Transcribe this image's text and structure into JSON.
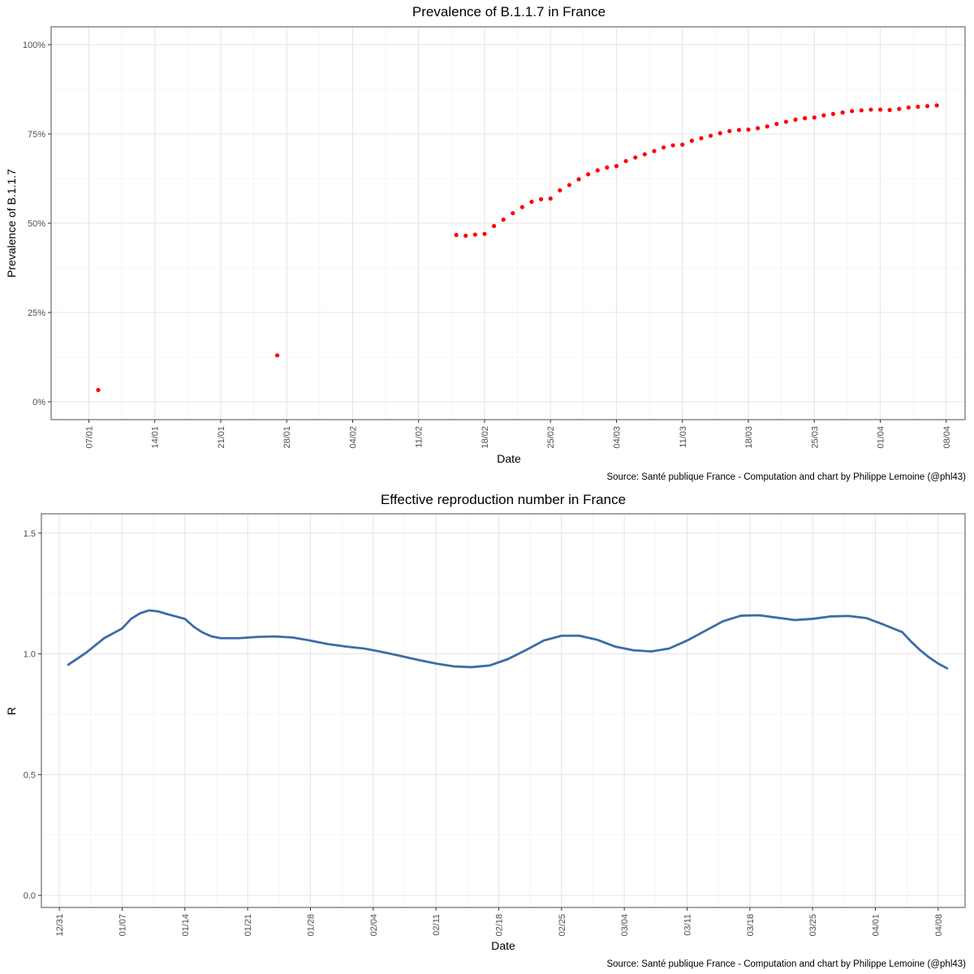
{
  "chart_data": [
    {
      "type": "scatter",
      "title": "Prevalence of B.1.1.7 in France",
      "xlabel": "Date",
      "ylabel": "Prevalence of B.1.1.7",
      "caption": "Source: Santé publique France - Computation and chart by Philippe Lemoine (@phl43)",
      "xlim": [
        "2021-01-03",
        "2021-04-10"
      ],
      "ylim": [
        -0.05,
        1.05
      ],
      "x_ticks": [
        "2021-01-07",
        "2021-01-14",
        "2021-01-21",
        "2021-01-28",
        "2021-02-04",
        "2021-02-11",
        "2021-02-18",
        "2021-02-25",
        "2021-03-04",
        "2021-03-11",
        "2021-03-18",
        "2021-03-25",
        "2021-04-01",
        "2021-04-08"
      ],
      "x_tick_labels": [
        "07/01",
        "14/01",
        "21/01",
        "28/01",
        "04/02",
        "11/02",
        "18/02",
        "25/02",
        "04/03",
        "11/03",
        "18/03",
        "25/03",
        "01/04",
        "08/04"
      ],
      "y_ticks": [
        0,
        0.25,
        0.5,
        0.75,
        1.0
      ],
      "y_tick_labels": [
        "0%",
        "25%",
        "50%",
        "75%",
        "100%"
      ],
      "grid": true,
      "point_color": "#ff0000",
      "points": [
        {
          "x": "2021-01-08",
          "y": 0.033
        },
        {
          "x": "2021-01-27",
          "y": 0.13
        },
        {
          "x": "2021-02-15",
          "y": 0.467
        },
        {
          "x": "2021-02-16",
          "y": 0.465
        },
        {
          "x": "2021-02-17",
          "y": 0.468
        },
        {
          "x": "2021-02-18",
          "y": 0.47
        },
        {
          "x": "2021-02-19",
          "y": 0.492
        },
        {
          "x": "2021-02-20",
          "y": 0.51
        },
        {
          "x": "2021-02-21",
          "y": 0.528
        },
        {
          "x": "2021-02-22",
          "y": 0.545
        },
        {
          "x": "2021-02-23",
          "y": 0.56
        },
        {
          "x": "2021-02-24",
          "y": 0.567
        },
        {
          "x": "2021-02-25",
          "y": 0.569
        },
        {
          "x": "2021-02-26",
          "y": 0.592
        },
        {
          "x": "2021-02-27",
          "y": 0.607
        },
        {
          "x": "2021-02-28",
          "y": 0.623
        },
        {
          "x": "2021-03-01",
          "y": 0.637
        },
        {
          "x": "2021-03-02",
          "y": 0.648
        },
        {
          "x": "2021-03-03",
          "y": 0.656
        },
        {
          "x": "2021-03-04",
          "y": 0.66
        },
        {
          "x": "2021-03-05",
          "y": 0.674
        },
        {
          "x": "2021-03-06",
          "y": 0.684
        },
        {
          "x": "2021-03-07",
          "y": 0.693
        },
        {
          "x": "2021-03-08",
          "y": 0.702
        },
        {
          "x": "2021-03-09",
          "y": 0.712
        },
        {
          "x": "2021-03-10",
          "y": 0.718
        },
        {
          "x": "2021-03-11",
          "y": 0.72
        },
        {
          "x": "2021-03-12",
          "y": 0.731
        },
        {
          "x": "2021-03-13",
          "y": 0.738
        },
        {
          "x": "2021-03-14",
          "y": 0.745
        },
        {
          "x": "2021-03-15",
          "y": 0.752
        },
        {
          "x": "2021-03-16",
          "y": 0.758
        },
        {
          "x": "2021-03-17",
          "y": 0.761
        },
        {
          "x": "2021-03-18",
          "y": 0.762
        },
        {
          "x": "2021-03-19",
          "y": 0.766
        },
        {
          "x": "2021-03-20",
          "y": 0.771
        },
        {
          "x": "2021-03-21",
          "y": 0.778
        },
        {
          "x": "2021-03-22",
          "y": 0.784
        },
        {
          "x": "2021-03-23",
          "y": 0.79
        },
        {
          "x": "2021-03-24",
          "y": 0.794
        },
        {
          "x": "2021-03-25",
          "y": 0.796
        },
        {
          "x": "2021-03-26",
          "y": 0.802
        },
        {
          "x": "2021-03-27",
          "y": 0.806
        },
        {
          "x": "2021-03-28",
          "y": 0.81
        },
        {
          "x": "2021-03-29",
          "y": 0.814
        },
        {
          "x": "2021-03-30",
          "y": 0.816
        },
        {
          "x": "2021-03-31",
          "y": 0.818
        },
        {
          "x": "2021-04-01",
          "y": 0.818
        },
        {
          "x": "2021-04-02",
          "y": 0.817
        },
        {
          "x": "2021-04-03",
          "y": 0.82
        },
        {
          "x": "2021-04-04",
          "y": 0.824
        },
        {
          "x": "2021-04-05",
          "y": 0.826
        },
        {
          "x": "2021-04-06",
          "y": 0.828
        },
        {
          "x": "2021-04-07",
          "y": 0.83
        }
      ]
    },
    {
      "type": "line",
      "title": "Effective reproduction number in France",
      "xlabel": "Date",
      "ylabel": "R",
      "caption": "Source: Santé publique France - Computation and chart by Philippe Lemoine (@phl43)",
      "xlim": [
        "2020-12-29",
        "2021-04-11"
      ],
      "ylim": [
        -0.05,
        1.58
      ],
      "x_ticks": [
        "2020-12-31",
        "2021-01-07",
        "2021-01-14",
        "2021-01-21",
        "2021-01-28",
        "2021-02-04",
        "2021-02-11",
        "2021-02-18",
        "2021-02-25",
        "2021-03-04",
        "2021-03-11",
        "2021-03-18",
        "2021-03-25",
        "2021-04-01",
        "2021-04-08"
      ],
      "x_tick_labels": [
        "12/31",
        "01/07",
        "01/14",
        "01/21",
        "01/28",
        "02/04",
        "02/11",
        "02/18",
        "02/25",
        "03/04",
        "03/11",
        "03/18",
        "03/25",
        "04/01",
        "04/08"
      ],
      "y_ticks": [
        0.0,
        0.5,
        1.0,
        1.5
      ],
      "y_tick_labels": [
        "0.0",
        "0.5",
        "1.0",
        "1.5"
      ],
      "grid": true,
      "line_color": "#3a6da8",
      "series": [
        {
          "x": [
            "2021-01-01",
            "2021-01-03",
            "2021-01-05",
            "2021-01-07",
            "2021-01-08",
            "2021-01-09",
            "2021-01-10",
            "2021-01-11",
            "2021-01-12",
            "2021-01-14",
            "2021-01-15",
            "2021-01-16",
            "2021-01-17",
            "2021-01-18",
            "2021-01-20",
            "2021-01-22",
            "2021-01-24",
            "2021-01-26",
            "2021-01-28",
            "2021-01-30",
            "2021-02-01",
            "2021-02-03",
            "2021-02-05",
            "2021-02-07",
            "2021-02-09",
            "2021-02-11",
            "2021-02-13",
            "2021-02-15",
            "2021-02-17",
            "2021-02-19",
            "2021-02-21",
            "2021-02-23",
            "2021-02-25",
            "2021-02-27",
            "2021-03-01",
            "2021-03-03",
            "2021-03-05",
            "2021-03-07",
            "2021-03-09",
            "2021-03-11",
            "2021-03-13",
            "2021-03-15",
            "2021-03-17",
            "2021-03-19",
            "2021-03-21",
            "2021-03-23",
            "2021-03-25",
            "2021-03-27",
            "2021-03-29",
            "2021-03-31",
            "2021-04-02",
            "2021-04-04",
            "2021-04-05",
            "2021-04-06",
            "2021-04-07",
            "2021-04-08",
            "2021-04-09"
          ],
          "values": [
            0.955,
            1.005,
            1.065,
            1.105,
            1.145,
            1.168,
            1.18,
            1.176,
            1.165,
            1.145,
            1.112,
            1.088,
            1.072,
            1.065,
            1.065,
            1.07,
            1.072,
            1.068,
            1.055,
            1.04,
            1.03,
            1.022,
            1.008,
            0.992,
            0.975,
            0.96,
            0.948,
            0.945,
            0.952,
            0.978,
            1.015,
            1.055,
            1.075,
            1.075,
            1.058,
            1.03,
            1.015,
            1.01,
            1.022,
            1.055,
            1.095,
            1.135,
            1.158,
            1.16,
            1.15,
            1.14,
            1.145,
            1.155,
            1.157,
            1.148,
            1.12,
            1.09,
            1.05,
            1.015,
            0.985,
            0.96,
            0.94
          ]
        }
      ]
    }
  ]
}
